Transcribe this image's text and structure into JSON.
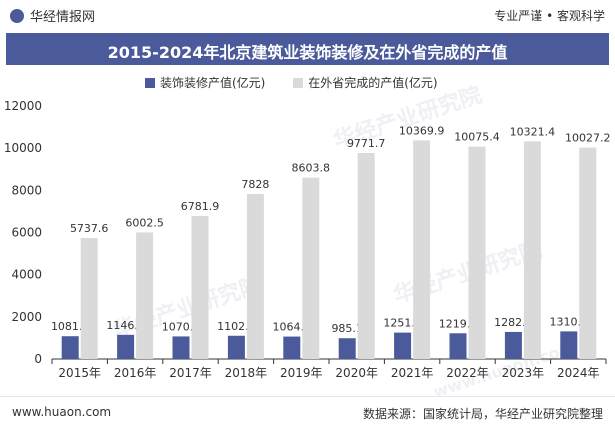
{
  "header": {
    "brand": "华经情报网",
    "brand_icon": "huajing-logo-icon",
    "slogan": "专业严谨 • 客观科学"
  },
  "watermarks": [
    "华经产业研究院",
    "华经产业研究院",
    "华经产业研究院",
    "www.huaon.com"
  ],
  "footer": {
    "url": "www.huaon.com",
    "source": "数据来源：国家统计局，华经产业研究院整理"
  },
  "colors": {
    "accent": "#4a5a9a",
    "series1": "#4a5a9a",
    "series2": "#dadada"
  },
  "chart_data": {
    "type": "bar",
    "title": "2015-2024年北京建筑业装饰装修及在外省完成的产值",
    "categories": [
      "2015年",
      "2016年",
      "2017年",
      "2018年",
      "2019年",
      "2020年",
      "2021年",
      "2022年",
      "2023年",
      "2024年"
    ],
    "series": [
      {
        "name": "装饰装修产值(亿元)",
        "values": [
          1081.1,
          1146.9,
          1070.9,
          1102.2,
          1064.5,
          985.1,
          1251.5,
          1219.9,
          1282.7,
          1310.3
        ]
      },
      {
        "name": "在外省完成的产值(亿元)",
        "values": [
          5737.6,
          6002.5,
          6781.9,
          7828,
          8603.8,
          9771.7,
          10369.9,
          10075.4,
          10321.4,
          10027.2
        ]
      }
    ],
    "ylim": [
      0,
      12000
    ],
    "yticks": [
      0,
      2000,
      4000,
      6000,
      8000,
      10000,
      12000
    ],
    "legend_position": "top-left",
    "grid": false
  }
}
